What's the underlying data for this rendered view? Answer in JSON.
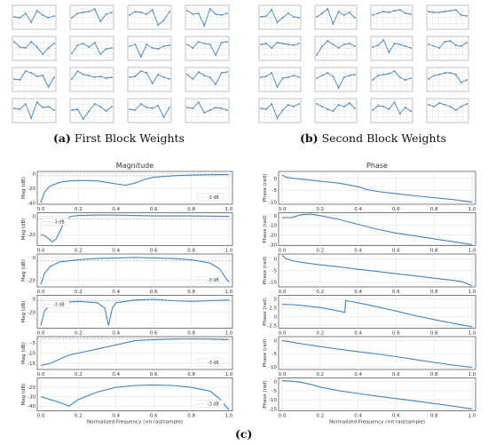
{
  "captions": {
    "a": {
      "tag": "(a)",
      "text": "First Block Weights"
    },
    "b": {
      "tag": "(b)",
      "text": "Second Block Weights"
    },
    "c": {
      "tag": "(c)",
      "text": ""
    }
  },
  "colors": {
    "line": "#3b86c6",
    "grid": "#e3e3e3",
    "axis": "#444444",
    "refline": "#9aa5b1"
  },
  "chart_data": [
    {
      "type": "line",
      "title": "",
      "xlabel": "",
      "ylabel": "",
      "layout": "grid 4 rows x 4 columns of small line plots",
      "x": [
        0,
        1,
        2,
        3,
        4,
        5,
        6,
        7
      ],
      "series": [
        {
          "values": [
            0.1,
            0.05,
            0.3,
            -0.2,
            0.45,
            0.2,
            0.05,
            0.15
          ]
        },
        {
          "values": [
            0.05,
            0.3,
            0.35,
            0.4,
            0.55,
            -0.15,
            0.25,
            0.35
          ]
        },
        {
          "values": [
            0.2,
            0.4,
            0.35,
            0.25,
            0.5,
            -0.35,
            -0.1,
            0.4
          ]
        },
        {
          "values": [
            0.45,
            0.25,
            0.3,
            -0.4,
            0.55,
            0.25,
            0.2,
            0.3
          ]
        },
        {
          "values": [
            0.45,
            0.15,
            0.1,
            0.45,
            0.15,
            -0.25,
            0.1,
            0.35
          ]
        },
        {
          "values": [
            -0.2,
            0.25,
            0.35,
            0.15,
            0.4,
            -0.25,
            0.05,
            0.1
          ]
        },
        {
          "values": [
            0.2,
            0.3,
            -0.4,
            0.3,
            0.1,
            0.05,
            0.2,
            0.25
          ]
        },
        {
          "values": [
            0.3,
            0.1,
            0.45,
            0.35,
            0.3,
            -0.3,
            0.4,
            0.45
          ]
        },
        {
          "values": [
            0.1,
            0.05,
            0.55,
            0.45,
            0.25,
            0.3,
            -0.35,
            0.2
          ]
        },
        {
          "values": [
            0.1,
            0.55,
            0.35,
            0.3,
            0.2,
            0.25,
            0.15,
            0.2
          ]
        },
        {
          "values": [
            0.2,
            0.25,
            0.55,
            0.45,
            -0.15,
            0.35,
            0.2,
            0.1
          ]
        },
        {
          "values": [
            0.35,
            0.1,
            0.5,
            0.3,
            0.2,
            -0.2,
            0.45,
            0.5
          ]
        },
        {
          "values": [
            0.2,
            0.15,
            0.45,
            -0.35,
            0.55,
            0.25,
            0.3,
            0.1
          ]
        },
        {
          "values": [
            0.1,
            0.15,
            -0.4,
            0.05,
            0.45,
            0.3,
            0.05,
            0.3
          ]
        },
        {
          "values": [
            0.15,
            0.1,
            0.45,
            0.25,
            0.2,
            0.35,
            -0.3,
            0.25
          ]
        },
        {
          "values": [
            0.25,
            0.2,
            0.55,
            -0.05,
            0.1,
            0.25,
            0.2,
            0.1
          ]
        }
      ]
    },
    {
      "type": "line",
      "title": "",
      "xlabel": "",
      "ylabel": "",
      "layout": "grid 4 rows x 4 columns of small line plots",
      "x": [
        0,
        1,
        2,
        3,
        4,
        5,
        6,
        7
      ],
      "series": [
        {
          "values": [
            0.1,
            0.15,
            0.5,
            -0.2,
            0.05,
            0.3,
            0.1,
            0.05
          ]
        },
        {
          "values": [
            0.1,
            0.3,
            0.55,
            -0.3,
            0.4,
            0.2,
            0.35,
            0.05
          ]
        },
        {
          "values": [
            0.2,
            0.3,
            0.4,
            0.35,
            0.45,
            0.5,
            0.3,
            0.25
          ]
        },
        {
          "values": [
            0.4,
            0.35,
            0.35,
            0.4,
            0.45,
            0.5,
            0.2,
            0.15
          ]
        },
        {
          "values": [
            0.3,
            0.35,
            0.1,
            0.4,
            0.35,
            0.3,
            0.25,
            0.35
          ]
        },
        {
          "values": [
            -0.3,
            0.2,
            0.5,
            0.3,
            0.1,
            0.3,
            0.35,
            0.2
          ]
        },
        {
          "values": [
            0.15,
            0.25,
            0.55,
            -0.15,
            0.35,
            0.3,
            0.2,
            0.1
          ]
        },
        {
          "values": [
            0.3,
            0.2,
            0.1,
            0.45,
            0.5,
            0.25,
            0.2,
            0.4
          ]
        },
        {
          "values": [
            0.2,
            0.25,
            0.45,
            -0.35,
            0.15,
            0.2,
            0.3,
            0.2
          ]
        },
        {
          "values": [
            0.15,
            0.3,
            0.45,
            0.25,
            -0.4,
            0.2,
            0.3,
            0.35
          ]
        },
        {
          "values": [
            0.05,
            0.3,
            0.35,
            0.4,
            0.55,
            0.2,
            0.05,
            0.15
          ]
        },
        {
          "values": [
            0.1,
            0.3,
            0.35,
            0.45,
            0.45,
            0.35,
            -0.1,
            0.05
          ]
        },
        {
          "values": [
            0.2,
            0.15,
            0.45,
            -0.35,
            0.1,
            0.4,
            0.3,
            0.45
          ]
        },
        {
          "values": [
            0.45,
            0.3,
            0.15,
            0.05,
            0.4,
            0.3,
            0.5,
            0.2
          ]
        },
        {
          "values": [
            0.1,
            0.35,
            0.3,
            0.15,
            0.55,
            -0.1,
            0.25,
            0.05
          ]
        },
        {
          "values": [
            0.4,
            0.3,
            0.5,
            0.4,
            0.3,
            0.1,
            0.3,
            0.45
          ]
        }
      ]
    },
    {
      "type": "line",
      "title": "Magnitude",
      "xlabel": "Normalized Frequency (×π rad/sample)",
      "ylabel": "Mag (dB)",
      "x_ticks": [
        "0.0",
        "0.2",
        "0.4",
        "0.6",
        "0.8",
        "1.0"
      ],
      "legend": "-3 dB",
      "panels": [
        {
          "ylim": [
            -42,
            3
          ],
          "yticks": [
            0,
            -20,
            -40
          ],
          "ref": -3,
          "x": [
            0,
            0.02,
            0.05,
            0.1,
            0.15,
            0.2,
            0.25,
            0.3,
            0.35,
            0.4,
            0.45,
            0.5,
            0.55,
            0.6,
            0.7,
            0.8,
            0.9,
            1.0
          ],
          "values": [
            -40,
            -25,
            -17,
            -12,
            -10,
            -9.5,
            -9.5,
            -10,
            -12,
            -14,
            -16,
            -13,
            -8,
            -5,
            -3,
            -2,
            -1.5,
            -1.2
          ]
        },
        {
          "ylim": [
            -32,
            4
          ],
          "yticks": [
            0,
            -20
          ],
          "ref": -3,
          "x": [
            0,
            0.02,
            0.04,
            0.06,
            0.08,
            0.1,
            0.12,
            0.14,
            0.16,
            0.2,
            0.3,
            0.4,
            0.5,
            0.6,
            0.7,
            0.8,
            0.9,
            1.0
          ],
          "values": [
            -20,
            -21,
            -24,
            -28,
            -25,
            -17,
            -8,
            -3,
            0,
            1,
            1.5,
            1.5,
            1,
            0.5,
            0.5,
            0.5,
            0.3,
            0
          ]
        },
        {
          "ylim": [
            -26,
            3
          ],
          "yticks": [
            0,
            -20
          ],
          "ref": -3,
          "x": [
            0,
            0.02,
            0.05,
            0.1,
            0.2,
            0.3,
            0.4,
            0.5,
            0.6,
            0.7,
            0.8,
            0.9,
            0.95,
            1.0
          ],
          "values": [
            -24,
            -14,
            -8,
            -4,
            -2,
            -1,
            -0.5,
            0,
            -0.5,
            -1,
            -2,
            -5,
            -10,
            -22
          ]
        },
        {
          "ylim": [
            -44,
            5
          ],
          "yticks": [
            0,
            -20
          ],
          "ref": -3,
          "x": [
            0,
            0.02,
            0.05,
            0.1,
            0.2,
            0.3,
            0.34,
            0.36,
            0.38,
            0.4,
            0.5,
            0.6,
            0.7,
            0.8,
            0.9,
            1.0
          ],
          "values": [
            -40,
            -18,
            -10,
            -6,
            -4,
            -6,
            -14,
            -40,
            -14,
            -6,
            -2,
            -1,
            -3,
            -4,
            -3,
            -2
          ]
        },
        {
          "ylim": [
            -18,
            -2
          ],
          "yticks": [
            -5,
            -10,
            -15
          ],
          "ref": -3,
          "x": [
            0,
            0.05,
            0.1,
            0.15,
            0.2,
            0.3,
            0.4,
            0.5,
            0.6,
            0.7,
            0.8,
            0.9,
            1.0
          ],
          "values": [
            -16,
            -15,
            -13,
            -11,
            -10,
            -8,
            -6,
            -4,
            -3.5,
            -3.2,
            -3.1,
            -3.2,
            -3.5
          ]
        },
        {
          "ylim": [
            -45,
            -10
          ],
          "yticks": [
            -20,
            -30,
            -40
          ],
          "ref": -3,
          "x": [
            0,
            0.05,
            0.1,
            0.15,
            0.2,
            0.3,
            0.4,
            0.5,
            0.6,
            0.7,
            0.8,
            0.9,
            0.95,
            1.0
          ],
          "values": [
            -30,
            -33,
            -36,
            -40,
            -33,
            -25,
            -20,
            -18,
            -17.5,
            -18,
            -20,
            -24,
            -32,
            -44
          ]
        }
      ]
    },
    {
      "type": "line",
      "title": "Phase",
      "xlabel": "Normalized Frequency (×π rad/sample)",
      "ylabel": "Phase (rad)",
      "x_ticks": [
        "0.0",
        "0.2",
        "0.4",
        "0.6",
        "0.8",
        "1.0"
      ],
      "panels": [
        {
          "ylim": [
            -11,
            3
          ],
          "yticks": [
            0,
            -5,
            -10
          ],
          "x": [
            0,
            0.02,
            0.05,
            0.1,
            0.2,
            0.3,
            0.4,
            0.45,
            0.5,
            0.6,
            0.7,
            0.8,
            0.9,
            1.0
          ],
          "values": [
            1.5,
            0.5,
            0.2,
            -0.3,
            -1.2,
            -2,
            -3.5,
            -4.8,
            -5.5,
            -6.5,
            -7.4,
            -8.2,
            -9,
            -10
          ]
        },
        {
          "ylim": [
            -31,
            3
          ],
          "yticks": [
            0,
            -10,
            -20,
            -30
          ],
          "x": [
            0,
            0.05,
            0.1,
            0.15,
            0.2,
            0.3,
            0.4,
            0.5,
            0.6,
            0.7,
            0.8,
            0.9,
            1.0
          ],
          "values": [
            -2,
            -2,
            1,
            1.5,
            0,
            -4,
            -9,
            -14,
            -18,
            -21,
            -24,
            -27,
            -30
          ]
        },
        {
          "ylim": [
            -12,
            2
          ],
          "yticks": [
            0,
            -5,
            -10
          ],
          "x": [
            0,
            0.02,
            0.05,
            0.1,
            0.2,
            0.3,
            0.4,
            0.5,
            0.6,
            0.7,
            0.8,
            0.9,
            0.95,
            1.0
          ],
          "values": [
            1.5,
            0,
            -0.8,
            -1.5,
            -2.6,
            -3.5,
            -4.5,
            -5.4,
            -6.4,
            -7.3,
            -8.3,
            -9.2,
            -9.8,
            -11.5
          ]
        },
        {
          "ylim": [
            -3.2,
            6
          ],
          "yticks": [
            5.0,
            2.5,
            0.0,
            -2.5
          ],
          "x": [
            0,
            0.05,
            0.1,
            0.2,
            0.3,
            0.33,
            0.335,
            0.34,
            0.4,
            0.5,
            0.6,
            0.7,
            0.8,
            0.9,
            1.0
          ],
          "values": [
            3.5,
            3.4,
            3.2,
            2.6,
            1.6,
            1.2,
            4.6,
            4.5,
            3.9,
            2.8,
            1.6,
            0.3,
            -0.8,
            -1.8,
            -2.8
          ]
        },
        {
          "ylim": [
            -11,
            1.5
          ],
          "yticks": [
            0,
            -5,
            -10
          ],
          "x": [
            0,
            0.05,
            0.1,
            0.2,
            0.3,
            0.4,
            0.5,
            0.6,
            0.7,
            0.8,
            0.9,
            1.0
          ],
          "values": [
            0,
            -0.6,
            -1.2,
            -2.3,
            -3.3,
            -4.2,
            -5.1,
            -6.1,
            -7.2,
            -8.3,
            -9.3,
            -10.2
          ]
        },
        {
          "ylim": [
            -16,
            2
          ],
          "yticks": [
            0,
            -5,
            -10,
            -15
          ],
          "x": [
            0,
            0.05,
            0.1,
            0.15,
            0.2,
            0.3,
            0.4,
            0.5,
            0.6,
            0.7,
            0.8,
            0.9,
            1.0
          ],
          "values": [
            0.5,
            0.2,
            -0.4,
            -1.5,
            -3,
            -5,
            -6.5,
            -8,
            -9.3,
            -10.6,
            -12,
            -13.4,
            -15
          ]
        }
      ]
    }
  ]
}
